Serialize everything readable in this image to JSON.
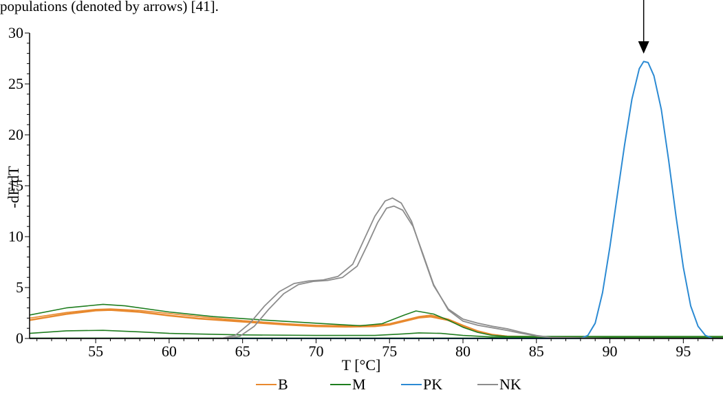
{
  "header": {
    "caption": "populations (denoted by arrows) [41]."
  },
  "chart_data": {
    "type": "line",
    "xlabel": "T [°C]",
    "ylabel": "-dF/dT",
    "xlim": [
      50.5,
      97.7
    ],
    "ylim": [
      0,
      30
    ],
    "x_ticks": [
      55,
      60,
      65,
      70,
      75,
      80,
      85,
      90,
      95
    ],
    "y_ticks": [
      0,
      5,
      10,
      15,
      20,
      25,
      30
    ],
    "grid": false,
    "legend_position": "bottom-center",
    "annotation": {
      "type": "arrow",
      "x": 92.3,
      "label": ""
    },
    "colors": {
      "B": "#e8892e",
      "M": "#1e7d1e",
      "PK": "#2b8ad3",
      "NK": "#8c8c8c"
    },
    "legend": [
      "B",
      "M",
      "PK",
      "NK"
    ],
    "series": [
      {
        "name": "B",
        "color": "#e8892e",
        "width": 2.6,
        "x": [
          50.5,
          53,
          55,
          56,
          58,
          60,
          62,
          65,
          68,
          70,
          72,
          74,
          75,
          76,
          77,
          77.8,
          79,
          80,
          81,
          82,
          83,
          85,
          88,
          92,
          97.7
        ],
        "y": [
          1.8,
          2.4,
          2.75,
          2.8,
          2.6,
          2.25,
          1.95,
          1.65,
          1.35,
          1.2,
          1.15,
          1.2,
          1.35,
          1.7,
          2.05,
          2.15,
          1.8,
          1.2,
          0.7,
          0.35,
          0.2,
          0.15,
          0.15,
          0.15,
          0.15
        ]
      },
      {
        "name": "B",
        "color": "#e8892e",
        "width": 1.6,
        "x": [
          50.5,
          53,
          55,
          56,
          58,
          60,
          62,
          65,
          68,
          70,
          72,
          74,
          75,
          76,
          77,
          77.8,
          79,
          80,
          81,
          82,
          83,
          85,
          88,
          92,
          97.7
        ],
        "y": [
          2.0,
          2.55,
          2.85,
          2.9,
          2.75,
          2.45,
          2.15,
          1.75,
          1.45,
          1.3,
          1.25,
          1.3,
          1.45,
          1.8,
          2.15,
          2.3,
          1.9,
          1.3,
          0.75,
          0.4,
          0.22,
          0.15,
          0.15,
          0.15,
          0.15
        ]
      },
      {
        "name": "M",
        "color": "#1e7d1e",
        "width": 1.6,
        "x": [
          50.5,
          53,
          55.5,
          57,
          60,
          63,
          66,
          70,
          73,
          74.5,
          76,
          76.8,
          78,
          79,
          80,
          81,
          82,
          83,
          85,
          88,
          92,
          97.7
        ],
        "y": [
          2.3,
          3.0,
          3.35,
          3.2,
          2.6,
          2.15,
          1.85,
          1.5,
          1.25,
          1.45,
          2.3,
          2.7,
          2.4,
          1.8,
          1.1,
          0.6,
          0.3,
          0.2,
          0.2,
          0.2,
          0.2,
          0.2
        ]
      },
      {
        "name": "M",
        "color": "#1e7d1e",
        "width": 1.6,
        "x": [
          50.5,
          53,
          55.5,
          58,
          60,
          65,
          70,
          74,
          76,
          77,
          78.5,
          80,
          82,
          85,
          90,
          97.7
        ],
        "y": [
          0.5,
          0.75,
          0.8,
          0.65,
          0.5,
          0.35,
          0.3,
          0.3,
          0.45,
          0.55,
          0.5,
          0.3,
          0.15,
          0.1,
          0.1,
          0.1
        ]
      },
      {
        "name": "M",
        "color": "#1e7d1e",
        "width": 1.4,
        "x": [
          50.5,
          60,
          70,
          80,
          90,
          97.7
        ],
        "y": [
          0.05,
          0.05,
          0.05,
          0.05,
          0.05,
          0.05
        ]
      },
      {
        "name": "PK",
        "color": "#2b8ad3",
        "width": 2.0,
        "x": [
          50.5,
          80,
          85,
          88,
          88.5,
          89,
          89.5,
          90,
          90.5,
          91,
          91.5,
          92,
          92.3,
          92.6,
          93,
          93.5,
          94,
          94.5,
          95,
          95.5,
          96,
          96.5,
          97,
          97.7
        ],
        "y": [
          0,
          0,
          0,
          0,
          0.3,
          1.5,
          4.5,
          9.0,
          14.0,
          19.0,
          23.5,
          26.5,
          27.2,
          27.1,
          25.8,
          22.5,
          17.5,
          12.0,
          7.0,
          3.2,
          1.2,
          0.3,
          0,
          0
        ]
      },
      {
        "name": "NK",
        "color": "#8c8c8c",
        "width": 1.8,
        "x": [
          50.5,
          63.5,
          64.5,
          65.5,
          66.5,
          67.5,
          68.5,
          69.5,
          70.5,
          71.5,
          72.5,
          73.2,
          74,
          74.7,
          75.2,
          75.8,
          76.5,
          77.2,
          78,
          79,
          80,
          81,
          82,
          83,
          84,
          85,
          86,
          90,
          97.7
        ],
        "y": [
          0,
          0,
          0.3,
          1.5,
          3.2,
          4.6,
          5.4,
          5.65,
          5.75,
          6.1,
          7.3,
          9.5,
          12.0,
          13.5,
          13.8,
          13.3,
          11.5,
          8.5,
          5.2,
          2.9,
          1.9,
          1.5,
          1.2,
          0.95,
          0.6,
          0.3,
          0.1,
          0,
          0
        ]
      },
      {
        "name": "NK",
        "color": "#8c8c8c",
        "width": 1.8,
        "x": [
          50.5,
          63.8,
          64.8,
          65.8,
          66.8,
          67.8,
          68.8,
          69.8,
          70.8,
          71.8,
          72.8,
          73.5,
          74.2,
          74.8,
          75.3,
          75.9,
          76.6,
          77.3,
          78,
          79,
          80,
          81,
          82,
          83,
          84,
          85,
          86,
          90,
          97.7
        ],
        "y": [
          0,
          0,
          0.2,
          1.2,
          2.9,
          4.4,
          5.3,
          5.6,
          5.7,
          6.0,
          7.1,
          9.2,
          11.4,
          12.8,
          13.0,
          12.6,
          11.0,
          8.2,
          5.3,
          2.8,
          1.7,
          1.3,
          1.05,
          0.8,
          0.5,
          0.25,
          0.08,
          0,
          0
        ]
      }
    ]
  }
}
